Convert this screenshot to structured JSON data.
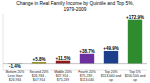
{
  "chart_data": {
    "type": "bar",
    "title": "Change in Real Family Income by Quintile and Top 5%,",
    "subtitle": "1979-2009",
    "categories": [
      "Bottom 20%\nLess than\n$26,934",
      "Second 20%\n$26,934 -\n$47,914",
      "Middle 20%\n$47,914 -\n$75,239",
      "Fourth 20%\n$75,239 -\n$113,040",
      "Top 20%\n$113,040 and\nup",
      "Top 5%\n$200,500 and\nup"
    ],
    "values": [
      -1.4,
      5.8,
      11.5,
      38.7,
      49.9,
      172.9
    ],
    "value_labels": [
      "-1.4%",
      "+5.8%",
      "+11.5%",
      "+38.7%",
      "+49.9%",
      "+172.9%"
    ],
    "colors": [
      "#4e7c47",
      "#8b8000",
      "#8b1a1a",
      "#6b2fa0",
      "#1c3f8c",
      "#2e8b2e"
    ],
    "ylim": [
      -25,
      195
    ],
    "data_labels": true,
    "tick_labels": "x"
  }
}
